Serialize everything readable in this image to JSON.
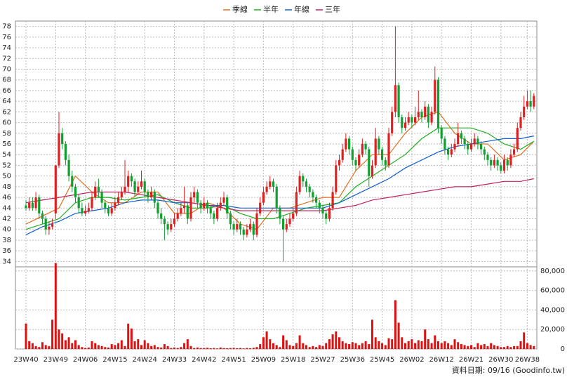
{
  "chart_data": {
    "type": "candlestick",
    "legend": [
      {
        "name": "季線",
        "color": "#e07020"
      },
      {
        "name": "半年",
        "color": "#20b020"
      },
      {
        "name": "年線",
        "color": "#1060d0"
      },
      {
        "name": "三年",
        "color": "#c02060"
      }
    ],
    "up_color": "#e02020",
    "down_color": "#10a030",
    "categories": [
      "23W40",
      null,
      null,
      null,
      null,
      null,
      null,
      null,
      null,
      "23W49",
      null,
      null,
      null,
      null,
      null,
      null,
      null,
      null,
      "24W06",
      null,
      null,
      null,
      null,
      null,
      null,
      null,
      null,
      "24W15",
      null,
      null,
      null,
      null,
      null,
      null,
      null,
      null,
      "24W24",
      null,
      null,
      null,
      null,
      null,
      null,
      null,
      null,
      "24W33",
      null,
      null,
      null,
      null,
      null,
      null,
      null,
      null,
      "24W42",
      null,
      null,
      null,
      null,
      null,
      null,
      null,
      null,
      "24W51",
      null,
      null,
      null,
      null,
      null,
      null,
      null,
      null,
      "25W09",
      null,
      null,
      null,
      null,
      null,
      null,
      null,
      null,
      "25W18",
      null,
      null,
      null,
      null,
      null,
      null,
      null,
      null,
      "25W27",
      null,
      null,
      null,
      null,
      null,
      null,
      null,
      null,
      "25W36",
      null,
      null,
      null,
      null,
      null,
      null,
      null,
      null,
      "25W45",
      null,
      null,
      null,
      null,
      null,
      null,
      null,
      null,
      "26W02",
      null,
      null,
      null,
      null,
      null,
      null,
      null,
      null,
      "26W12",
      null,
      null,
      null,
      null,
      null,
      null,
      null,
      null,
      "26W21",
      null,
      null,
      null,
      null,
      null,
      null,
      null,
      null,
      "26W30",
      null,
      null,
      null,
      null,
      null,
      null,
      null,
      "26W38",
      null,
      null
    ],
    "ohlc": [
      [
        44.5,
        45.5,
        43.5,
        44
      ],
      [
        44,
        46,
        43.5,
        45
      ],
      [
        45,
        46,
        43.5,
        44
      ],
      [
        44,
        47,
        43.5,
        46
      ],
      [
        46,
        46.5,
        42,
        43
      ],
      [
        43,
        43.5,
        41,
        42
      ],
      [
        42,
        42.5,
        39,
        40
      ],
      [
        40,
        41.5,
        39,
        40.5
      ],
      [
        40.5,
        42,
        40,
        41
      ],
      [
        43,
        52,
        42,
        52
      ],
      [
        52,
        62,
        51.5,
        58
      ],
      [
        58,
        59,
        55,
        56
      ],
      [
        56,
        56.5,
        52,
        53
      ],
      [
        53,
        54,
        49,
        50
      ],
      [
        50,
        51,
        47,
        48
      ],
      [
        48,
        48.5,
        45,
        46
      ],
      [
        46,
        46.5,
        43,
        44
      ],
      [
        44,
        45,
        42.5,
        43
      ],
      [
        43,
        44.5,
        42.5,
        43.5
      ],
      [
        43.5,
        45,
        43,
        44
      ],
      [
        44,
        47,
        43.5,
        46
      ],
      [
        46,
        49,
        45.5,
        48
      ],
      [
        48,
        49.5,
        46,
        47
      ],
      [
        47,
        47.5,
        44,
        45
      ],
      [
        45,
        45.5,
        43,
        44
      ],
      [
        44,
        44.5,
        42.5,
        43
      ],
      [
        43,
        45,
        42.5,
        44
      ],
      [
        44,
        46,
        43.5,
        45
      ],
      [
        45,
        47,
        44.5,
        46
      ],
      [
        46,
        48,
        45.5,
        47
      ],
      [
        47,
        53,
        46.5,
        48
      ],
      [
        48,
        51,
        47,
        50
      ],
      [
        50,
        50.5,
        48,
        49
      ],
      [
        49,
        49.5,
        46,
        47
      ],
      [
        47,
        49,
        46.5,
        48
      ],
      [
        48,
        51,
        47.5,
        49
      ],
      [
        49,
        49.5,
        46,
        47
      ],
      [
        47,
        47.5,
        45,
        46
      ],
      [
        46,
        48,
        45.5,
        47
      ],
      [
        47,
        47.5,
        44,
        45
      ],
      [
        45,
        45.5,
        42,
        43
      ],
      [
        43,
        44,
        41,
        42
      ],
      [
        42,
        42.5,
        38,
        41
      ],
      [
        41,
        41.5,
        39,
        40
      ],
      [
        40,
        42,
        39.5,
        41
      ],
      [
        41,
        43,
        40.5,
        42
      ],
      [
        42,
        44,
        41.5,
        43
      ],
      [
        43,
        45,
        42.5,
        44
      ],
      [
        44,
        48,
        43,
        44.5
      ],
      [
        44.5,
        45,
        41,
        42
      ],
      [
        42,
        47,
        41.5,
        46
      ],
      [
        46,
        48,
        45,
        47
      ],
      [
        47,
        47.5,
        44,
        45
      ],
      [
        45,
        45.5,
        43,
        44
      ],
      [
        44,
        46,
        43.5,
        45
      ],
      [
        45,
        45.5,
        43,
        44
      ],
      [
        44,
        44.5,
        42,
        43
      ],
      [
        43,
        43.5,
        41,
        42
      ],
      [
        42,
        45,
        41.5,
        44
      ],
      [
        44,
        46,
        43.5,
        45
      ],
      [
        45,
        47,
        44.5,
        46
      ],
      [
        46,
        46.5,
        42,
        43
      ],
      [
        43,
        43.5,
        40,
        41
      ],
      [
        41,
        41.5,
        39,
        40
      ],
      [
        40,
        42,
        39.5,
        41
      ],
      [
        41,
        41.5,
        39,
        40
      ],
      [
        40,
        40.5,
        38,
        39
      ],
      [
        39,
        41,
        38.5,
        40
      ],
      [
        40,
        42,
        39.5,
        41
      ],
      [
        41,
        41.5,
        38,
        39
      ],
      [
        39,
        44,
        38.5,
        43
      ],
      [
        43,
        46,
        42.5,
        45
      ],
      [
        45,
        48,
        44.5,
        47
      ],
      [
        47,
        49,
        46.5,
        48
      ],
      [
        48,
        50,
        47.5,
        49
      ],
      [
        49,
        49.5,
        47,
        48
      ],
      [
        48,
        48.5,
        43,
        44
      ],
      [
        44,
        44.5,
        41,
        42
      ],
      [
        42,
        42.5,
        34,
        40
      ],
      [
        40,
        42,
        39.5,
        41
      ],
      [
        41,
        43,
        40.5,
        42
      ],
      [
        42,
        44,
        41.5,
        43
      ],
      [
        43,
        48,
        42.5,
        47
      ],
      [
        47,
        51,
        46.5,
        50
      ],
      [
        50,
        50.5,
        48,
        49
      ],
      [
        49,
        49.5,
        47,
        48
      ],
      [
        48,
        48.5,
        46,
        47
      ],
      [
        47,
        47.5,
        45,
        46
      ],
      [
        46,
        46.5,
        44,
        45
      ],
      [
        45,
        45.5,
        43,
        44
      ],
      [
        44,
        44.5,
        42,
        43
      ],
      [
        43,
        43.5,
        41,
        42
      ],
      [
        42,
        45,
        41.5,
        44
      ],
      [
        44,
        48,
        43.5,
        47
      ],
      [
        47,
        53,
        46.5,
        52
      ],
      [
        52,
        54,
        51,
        53
      ],
      [
        53,
        56,
        52.5,
        55
      ],
      [
        55,
        58,
        54.5,
        57
      ],
      [
        57,
        57.5,
        54,
        55
      ],
      [
        55,
        55.5,
        52,
        53
      ],
      [
        53,
        53.5,
        51,
        52
      ],
      [
        52,
        55,
        51.5,
        54
      ],
      [
        54,
        57,
        53.5,
        56
      ],
      [
        56,
        56.5,
        54,
        55
      ],
      [
        55,
        55.5,
        48,
        50
      ],
      [
        50,
        53,
        49.5,
        52
      ],
      [
        52,
        59,
        51.5,
        57
      ],
      [
        57,
        57.5,
        54,
        55
      ],
      [
        55,
        55.5,
        52,
        53
      ],
      [
        53,
        53.5,
        51,
        52
      ],
      [
        52,
        59,
        51.5,
        58
      ],
      [
        58,
        63,
        57.5,
        62
      ],
      [
        62,
        78,
        61,
        67
      ],
      [
        67,
        67.5,
        60,
        61
      ],
      [
        61,
        61.5,
        58,
        59
      ],
      [
        59,
        61,
        58.5,
        60
      ],
      [
        60,
        62,
        59.5,
        61
      ],
      [
        61,
        61.5,
        59,
        60
      ],
      [
        60,
        63,
        59.5,
        61
      ],
      [
        61,
        66,
        60.5,
        62
      ],
      [
        62,
        62.5,
        60,
        61
      ],
      [
        61,
        64,
        60.5,
        63
      ],
      [
        63,
        63.5,
        59,
        60
      ],
      [
        60,
        63,
        59.5,
        62
      ],
      [
        62,
        70.5,
        61.5,
        68
      ],
      [
        68,
        68.5,
        58,
        59
      ],
      [
        59,
        59.5,
        56,
        57
      ],
      [
        57,
        57.5,
        54,
        55
      ],
      [
        55,
        55.5,
        53,
        54
      ],
      [
        54,
        56,
        53.5,
        55
      ],
      [
        55,
        57,
        54.5,
        56
      ],
      [
        56,
        60,
        55.5,
        58
      ],
      [
        58,
        58.5,
        56,
        57
      ],
      [
        57,
        57.5,
        55,
        56
      ],
      [
        56,
        56.5,
        54,
        55
      ],
      [
        55,
        57,
        54.5,
        56
      ],
      [
        56,
        58,
        55.5,
        57
      ],
      [
        57,
        57.5,
        55,
        56
      ],
      [
        56,
        56.5,
        54,
        55
      ],
      [
        55,
        55.5,
        53,
        54
      ],
      [
        54,
        54.5,
        52,
        53
      ],
      [
        53,
        53.5,
        51,
        52
      ],
      [
        52,
        54,
        51.5,
        53
      ],
      [
        53,
        53.5,
        51,
        52
      ],
      [
        52,
        52.5,
        50.5,
        51
      ],
      [
        51,
        54,
        50.5,
        53
      ],
      [
        53,
        53.5,
        51,
        52
      ],
      [
        52,
        55,
        51.5,
        54
      ],
      [
        54,
        56,
        53.5,
        55
      ],
      [
        55,
        60,
        54.5,
        59
      ],
      [
        59,
        62,
        58.5,
        61
      ],
      [
        61,
        65,
        60.5,
        63
      ],
      [
        63,
        66,
        62.5,
        64
      ],
      [
        64,
        66,
        62,
        63
      ],
      [
        63,
        65.5,
        62.5,
        65
      ]
    ],
    "volume": [
      26000,
      8000,
      6000,
      3000,
      2000,
      7000,
      4000,
      3000,
      30000,
      88000,
      20000,
      16000,
      9000,
      12000,
      6000,
      9000,
      4000,
      2000,
      1000,
      1500,
      8000,
      6000,
      4000,
      3000,
      2000,
      1500,
      5000,
      4000,
      6000,
      9000,
      3000,
      26000,
      21000,
      8000,
      10000,
      4000,
      9000,
      6000,
      3000,
      4000,
      2000,
      1500,
      5000,
      3000,
      1000,
      1500,
      1000,
      2000,
      6000,
      10000,
      3000,
      1000,
      1500,
      1000,
      1000,
      1200,
      800,
      1000,
      600,
      1500,
      1000,
      800,
      1000,
      1200,
      800,
      1000,
      600,
      1000,
      800,
      1200,
      2000,
      5000,
      12000,
      18000,
      10000,
      6000,
      4000,
      2000,
      14000,
      9000,
      4000,
      3000,
      6000,
      14000,
      6000,
      4000,
      2000,
      3000,
      2000,
      4000,
      3000,
      6000,
      10000,
      15000,
      18000,
      12000,
      8000,
      6000,
      5000,
      7000,
      6000,
      4000,
      6000,
      8000,
      5000,
      30000,
      12000,
      8000,
      6000,
      4000,
      11000,
      10000,
      50000,
      27000,
      12000,
      6000,
      8000,
      10000,
      6000,
      9000,
      8000,
      20000,
      10000,
      6000,
      14000,
      8000,
      6000,
      8000,
      6000,
      4000,
      10000,
      7000,
      5000,
      4000,
      3000,
      4000,
      2000,
      6000,
      4000,
      5000,
      3000,
      6000,
      4000,
      3000,
      2000,
      2000,
      3000,
      2000,
      3000,
      3000,
      8000,
      17000,
      6000,
      4000,
      3000
    ],
    "ma_x": [
      0,
      5,
      10,
      15,
      20,
      25,
      30,
      35,
      40,
      45,
      50,
      55,
      60,
      65,
      70,
      75,
      80,
      85,
      90,
      95,
      100,
      105,
      110,
      115,
      120,
      125,
      130,
      135,
      140,
      145,
      150,
      154
    ],
    "ma": [
      {
        "values": [
          41,
          42.5,
          44,
          50,
          47,
          45,
          45,
          47,
          47,
          43,
          43,
          45,
          44,
          41,
          40,
          44,
          44,
          45,
          46,
          46,
          51,
          54,
          54,
          58,
          61,
          62,
          58,
          56,
          56,
          53,
          54,
          56.5
        ]
      },
      {
        "values": [
          40,
          41,
          42,
          45,
          46,
          46,
          45.5,
          46,
          46.5,
          45,
          44,
          44,
          44.5,
          43,
          42,
          42,
          43,
          44,
          44.5,
          45,
          48,
          50,
          52,
          54,
          57,
          59,
          59,
          59,
          58,
          56,
          55,
          56.5
        ]
      },
      {
        "values": [
          39,
          40.5,
          41.5,
          43,
          43.5,
          44,
          45,
          45.5,
          45.5,
          45,
          45,
          44.5,
          44.5,
          44,
          44,
          44,
          44,
          44,
          44,
          45,
          46.5,
          48,
          49.5,
          51.5,
          53,
          54.5,
          55.5,
          56,
          56.5,
          57,
          57,
          57.5
        ]
      },
      {
        "values": [
          45,
          45.5,
          46,
          46.5,
          47,
          47,
          47,
          46.5,
          46,
          45.5,
          45,
          44.5,
          44,
          43.5,
          43.5,
          43.5,
          43.5,
          43.5,
          43.5,
          44,
          44.5,
          45.5,
          46,
          46.5,
          47,
          47.5,
          48,
          48,
          48.5,
          49,
          49,
          49.5
        ]
      }
    ],
    "ylim": [
      33,
      79
    ],
    "yticks": [
      34,
      36,
      38,
      40,
      42,
      44,
      46,
      48,
      50,
      52,
      54,
      56,
      58,
      60,
      62,
      64,
      66,
      68,
      70,
      72,
      74,
      76,
      78
    ],
    "vlim": [
      0,
      82000
    ],
    "vticks": [
      0,
      {
        "value": 20000,
        "label": "20,000"
      },
      {
        "value": 40000,
        "label": "40,000"
      },
      {
        "value": 60000,
        "label": "60,000"
      },
      {
        "value": 80000,
        "label": "80,000"
      }
    ],
    "grid": true,
    "footer": "資料日期: 09/16 (Goodinfo.tw)"
  }
}
